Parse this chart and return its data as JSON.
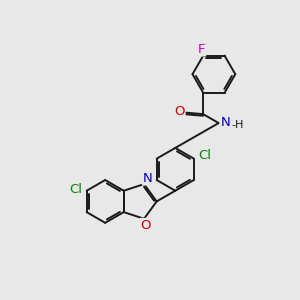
{
  "bg_color": "#e8e8e8",
  "atom_colors": {
    "N": "#0000cc",
    "O": "#cc0000",
    "F": "#cc00cc",
    "Cl": "#008800"
  },
  "bond_color": "#1a1a1a",
  "bond_width": 1.4,
  "font_size": 9.5
}
